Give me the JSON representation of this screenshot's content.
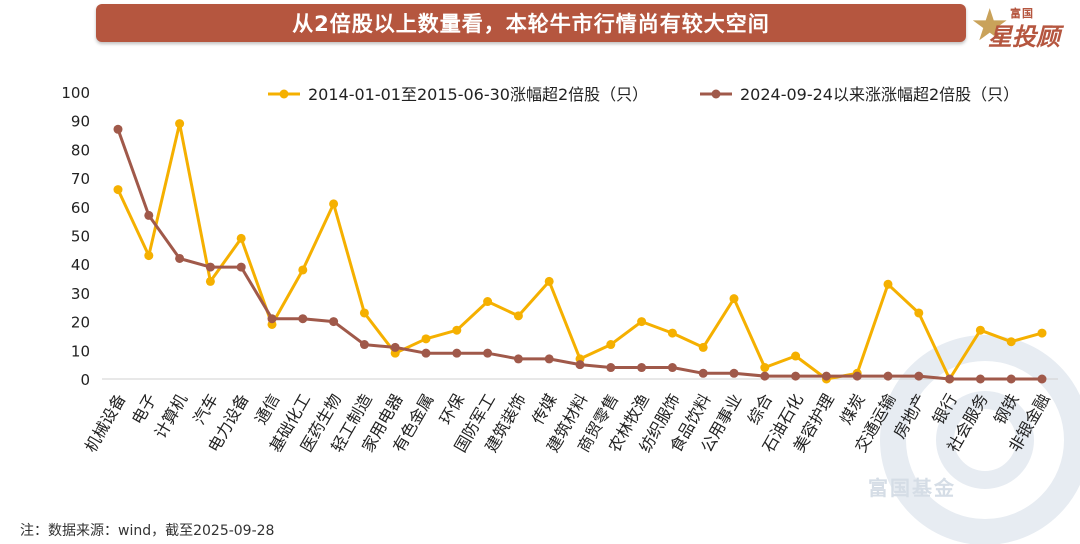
{
  "header": {
    "title": "从2倍股以上数量看，本轮牛市行情尚有较大空间"
  },
  "logo": {
    "top_text": "富国",
    "main_text": "星投顾"
  },
  "watermark": "富国基金",
  "footnote": "注：数据来源：wind，截至2025-09-28",
  "colors": {
    "series_a": "#f5b000",
    "series_b": "#a0594a",
    "title_bg": "#b5563f"
  },
  "chart_data": {
    "type": "line",
    "title": "",
    "xlabel": "",
    "ylabel": "",
    "ylim": [
      0,
      100
    ],
    "yticks": [
      0,
      10,
      20,
      30,
      40,
      50,
      60,
      70,
      80,
      90,
      100
    ],
    "grid": false,
    "legend": "top",
    "categories": [
      "机械设备",
      "电子",
      "计算机",
      "汽车",
      "电力设备",
      "通信",
      "基础化工",
      "医药生物",
      "轻工制造",
      "家用电器",
      "有色金属",
      "环保",
      "国防军工",
      "建筑装饰",
      "传媒",
      "建筑材料",
      "商贸零售",
      "农林牧渔",
      "纺织服饰",
      "食品饮料",
      "公用事业",
      "综合",
      "石油石化",
      "美容护理",
      "煤炭",
      "交通运输",
      "房地产",
      "银行",
      "社会服务",
      "钢铁",
      "非银金融"
    ],
    "series": [
      {
        "name": "2014-01-01至2015-06-30涨幅超2倍股（只）",
        "values": [
          66,
          43,
          89,
          34,
          49,
          19,
          38,
          61,
          23,
          9,
          14,
          17,
          27,
          22,
          34,
          7,
          12,
          20,
          16,
          11,
          28,
          4,
          8,
          0,
          2,
          33,
          23,
          0,
          17,
          13,
          16
        ]
      },
      {
        "name": "2024-09-24以来涨涨幅超2倍股（只）",
        "values": [
          87,
          57,
          42,
          39,
          39,
          21,
          21,
          20,
          12,
          11,
          9,
          9,
          9,
          7,
          7,
          5,
          4,
          4,
          4,
          2,
          2,
          1,
          1,
          1,
          1,
          1,
          1,
          0,
          0,
          0,
          0
        ]
      }
    ]
  }
}
